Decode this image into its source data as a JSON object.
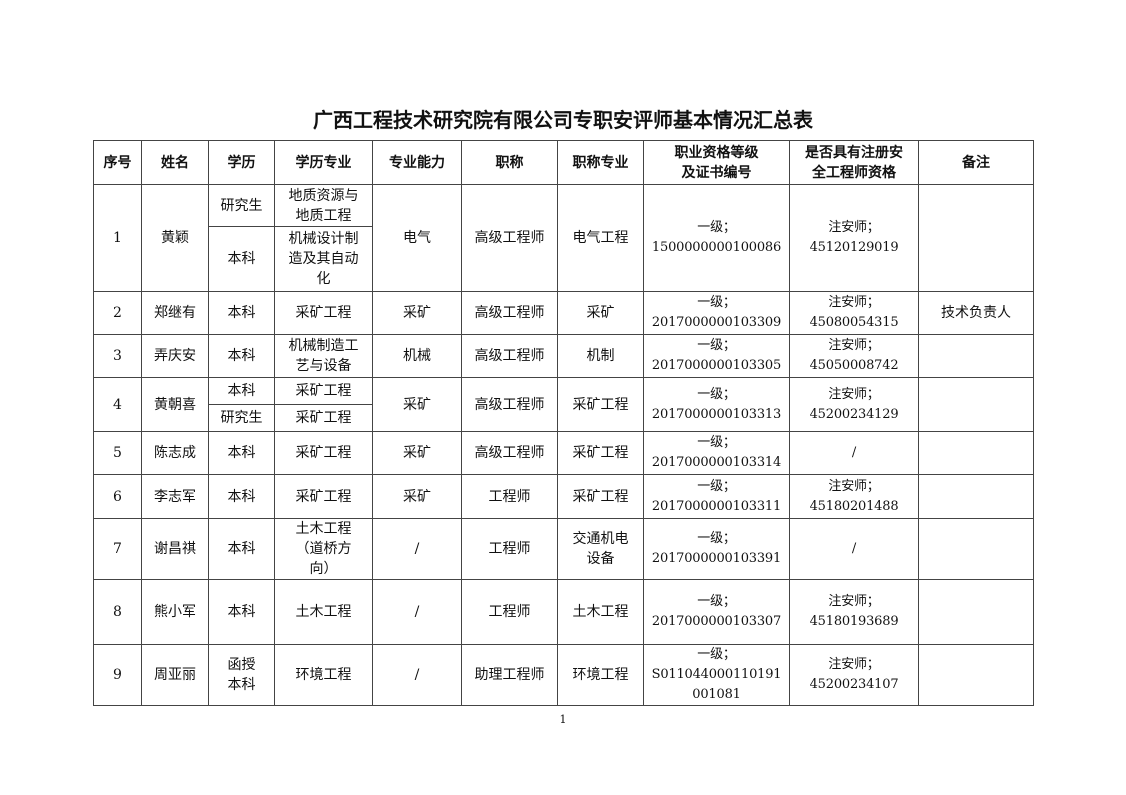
{
  "title": "广西工程技术研究院有限公司专职安评师基本情况汇总表",
  "headers": [
    "序号",
    "姓名",
    "学历",
    "学历专业",
    "专业能力",
    "职称",
    "职称专业",
    "职业资格等级\n及证书编号",
    "是否具有注册安\n全工程师资格",
    "备注"
  ],
  "rows": [
    {
      "no": "1",
      "name": "黄颖",
      "edu": [
        {
          "level": "研究生",
          "major": "地质资源与\n地质工程"
        },
        {
          "level": "本科",
          "major": "机械设计制\n造及其自动\n化"
        }
      ],
      "ability": "电气",
      "title": "高级工程师",
      "title_major": "电气工程",
      "cert": "一级；\n1500000000100086",
      "reg": "注安师；\n45120129019",
      "note": ""
    },
    {
      "no": "2",
      "name": "郑继有",
      "edu": [
        {
          "level": "本科",
          "major": "采矿工程"
        }
      ],
      "ability": "采矿",
      "title": "高级工程师",
      "title_major": "采矿",
      "cert": "一级；\n2017000000103309",
      "reg": "注安师；\n45080054315",
      "note": "技术负责人"
    },
    {
      "no": "3",
      "name": "弄庆安",
      "edu": [
        {
          "level": "本科",
          "major": "机械制造工\n艺与设备"
        }
      ],
      "ability": "机械",
      "title": "高级工程师",
      "title_major": "机制",
      "cert": "一级；\n2017000000103305",
      "reg": "注安师；\n45050008742",
      "note": ""
    },
    {
      "no": "4",
      "name": "黄朝喜",
      "edu": [
        {
          "level": "本科",
          "major": "采矿工程"
        },
        {
          "level": "研究生",
          "major": "采矿工程"
        }
      ],
      "ability": "采矿",
      "title": "高级工程师",
      "title_major": "采矿工程",
      "cert": "一级；\n2017000000103313",
      "reg": "注安师；\n45200234129",
      "note": ""
    },
    {
      "no": "5",
      "name": "陈志成",
      "edu": [
        {
          "level": "本科",
          "major": "采矿工程"
        }
      ],
      "ability": "采矿",
      "title": "高级工程师",
      "title_major": "采矿工程",
      "cert": "一级；\n2017000000103314",
      "reg": "/",
      "note": ""
    },
    {
      "no": "6",
      "name": "李志军",
      "edu": [
        {
          "level": "本科",
          "major": "采矿工程"
        }
      ],
      "ability": "采矿",
      "title": "工程师",
      "title_major": "采矿工程",
      "cert": "一级；\n2017000000103311",
      "reg": "注安师；\n45180201488",
      "note": ""
    },
    {
      "no": "7",
      "name": "谢昌祺",
      "edu": [
        {
          "level": "本科",
          "major": "土木工程\n（道桥方\n向）"
        }
      ],
      "ability": "/",
      "title": "工程师",
      "title_major": "交通机电\n设备",
      "cert": "一级；\n2017000000103391",
      "reg": "/",
      "note": ""
    },
    {
      "no": "8",
      "name": "熊小军",
      "edu": [
        {
          "level": "本科",
          "major": "土木工程"
        }
      ],
      "ability": "/",
      "title": "工程师",
      "title_major": "土木工程",
      "cert": "一级；\n2017000000103307",
      "reg": "注安师；\n45180193689",
      "note": ""
    },
    {
      "no": "9",
      "name": "周亚丽",
      "edu": [
        {
          "level": "函授\n本科",
          "major": "环境工程"
        }
      ],
      "ability": "/",
      "title": "助理工程师",
      "title_major": "环境工程",
      "cert": "一级；\nS011044000110191\n001081",
      "reg": "注安师；\n45200234107",
      "note": ""
    }
  ],
  "page_number": "1"
}
